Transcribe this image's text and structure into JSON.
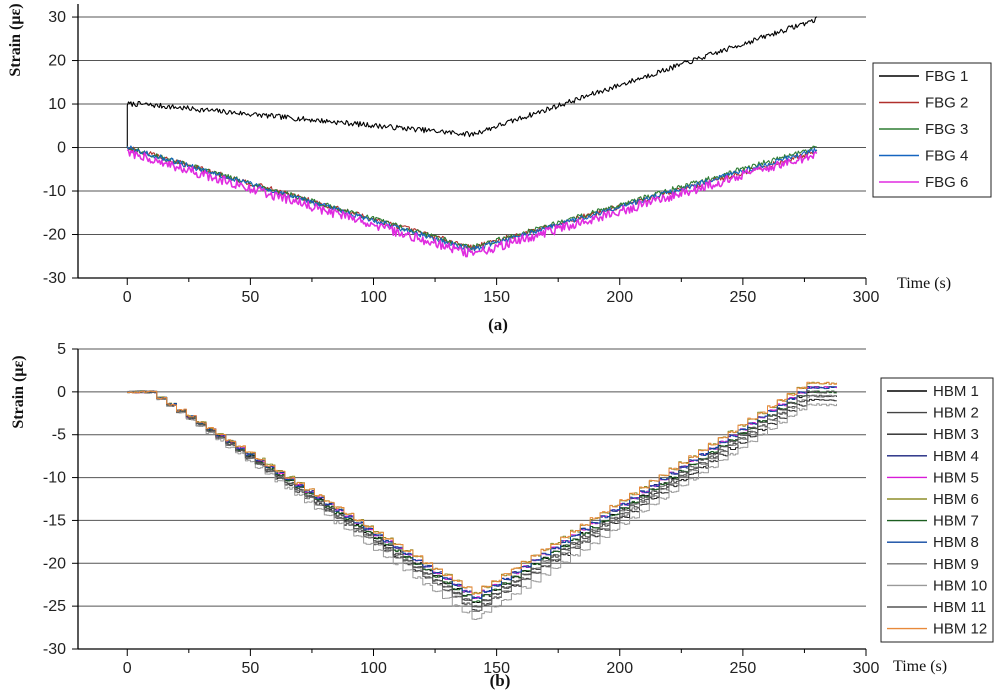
{
  "chart_data": [
    {
      "type": "line",
      "panel_label": "(a)",
      "xlabel": "Time (s)",
      "ylabel": "Strain (με)",
      "xlim": [
        -20,
        300
      ],
      "ylim": [
        -30,
        33
      ],
      "xticks": [
        0,
        50,
        100,
        150,
        200,
        250,
        300
      ],
      "yticks": [
        -30,
        -20,
        -10,
        0,
        10,
        20,
        30
      ],
      "grid": "horizontal",
      "legend_position": "right",
      "series": [
        {
          "name": "FBG 1",
          "color": "#000000",
          "x": [
            0,
            5,
            140,
            280
          ],
          "y": [
            10,
            10,
            3,
            29.5
          ]
        },
        {
          "name": "FBG 2",
          "color": "#b0302c",
          "x": [
            0,
            140,
            280
          ],
          "y": [
            0,
            -23,
            -1
          ]
        },
        {
          "name": "FBG 3",
          "color": "#2e7d32",
          "x": [
            0,
            140,
            280
          ],
          "y": [
            0,
            -23,
            0
          ]
        },
        {
          "name": "FBG 4",
          "color": "#1565c0",
          "x": [
            0,
            140,
            280
          ],
          "y": [
            0,
            -23.5,
            -0.5
          ]
        },
        {
          "name": "FBG 6",
          "color": "#e02ce0",
          "x": [
            0,
            140,
            280
          ],
          "y": [
            -1,
            -24.5,
            -1.5
          ]
        }
      ]
    },
    {
      "type": "line",
      "panel_label": "(b)",
      "xlabel": "Time (s)",
      "ylabel": "Strain (με)",
      "xlim": [
        -20,
        300
      ],
      "ylim": [
        -30,
        5
      ],
      "xticks": [
        0,
        50,
        100,
        150,
        200,
        250,
        300
      ],
      "yticks": [
        -30,
        -25,
        -20,
        -15,
        -10,
        -5,
        0,
        5
      ],
      "grid": "horizontal",
      "legend_position": "right",
      "series": [
        {
          "name": "HBM 1",
          "color": "#000000",
          "x": [
            0,
            8,
            140,
            275,
            288
          ],
          "y": [
            0,
            0,
            -24.5,
            0,
            0
          ]
        },
        {
          "name": "HBM 2",
          "color": "#444444",
          "x": [
            0,
            8,
            140,
            275,
            288
          ],
          "y": [
            0,
            0,
            -25,
            -0.5,
            -0.5
          ]
        },
        {
          "name": "HBM 3",
          "color": "#222222",
          "x": [
            0,
            8,
            140,
            275,
            288
          ],
          "y": [
            0,
            0,
            -25.5,
            -1,
            -1
          ]
        },
        {
          "name": "HBM 4",
          "color": "#1a237e",
          "x": [
            0,
            8,
            140,
            275,
            288
          ],
          "y": [
            0,
            0,
            -24,
            0.5,
            0.5
          ]
        },
        {
          "name": "HBM 5",
          "color": "#d81bd8",
          "x": [
            0,
            8,
            140,
            275,
            288
          ],
          "y": [
            0,
            0,
            -24,
            0.5,
            0.5
          ]
        },
        {
          "name": "HBM 6",
          "color": "#8d8d2a",
          "x": [
            0,
            8,
            140,
            275,
            288
          ],
          "y": [
            0,
            0,
            -23.5,
            1,
            1
          ]
        },
        {
          "name": "HBM 7",
          "color": "#1b5e20",
          "x": [
            0,
            8,
            140,
            275,
            288
          ],
          "y": [
            0,
            0,
            -24.5,
            0,
            0
          ]
        },
        {
          "name": "HBM 8",
          "color": "#0d47a1",
          "x": [
            0,
            8,
            140,
            275,
            288
          ],
          "y": [
            0,
            0,
            -24,
            0.5,
            0.5
          ]
        },
        {
          "name": "HBM 9",
          "color": "#777777",
          "x": [
            0,
            8,
            140,
            275,
            288
          ],
          "y": [
            0,
            0,
            -25.5,
            -0.5,
            -0.5
          ]
        },
        {
          "name": "HBM 10",
          "color": "#999999",
          "x": [
            0,
            8,
            140,
            275,
            288
          ],
          "y": [
            0,
            0,
            -26.5,
            -1.5,
            -1.5
          ]
        },
        {
          "name": "HBM 11",
          "color": "#555555",
          "x": [
            0,
            8,
            140,
            275,
            288
          ],
          "y": [
            0,
            0,
            -25,
            0,
            0
          ]
        },
        {
          "name": "HBM 12",
          "color": "#e8893a",
          "x": [
            0,
            8,
            140,
            275,
            288
          ],
          "y": [
            0,
            0,
            -23.5,
            1,
            1
          ]
        }
      ]
    }
  ]
}
